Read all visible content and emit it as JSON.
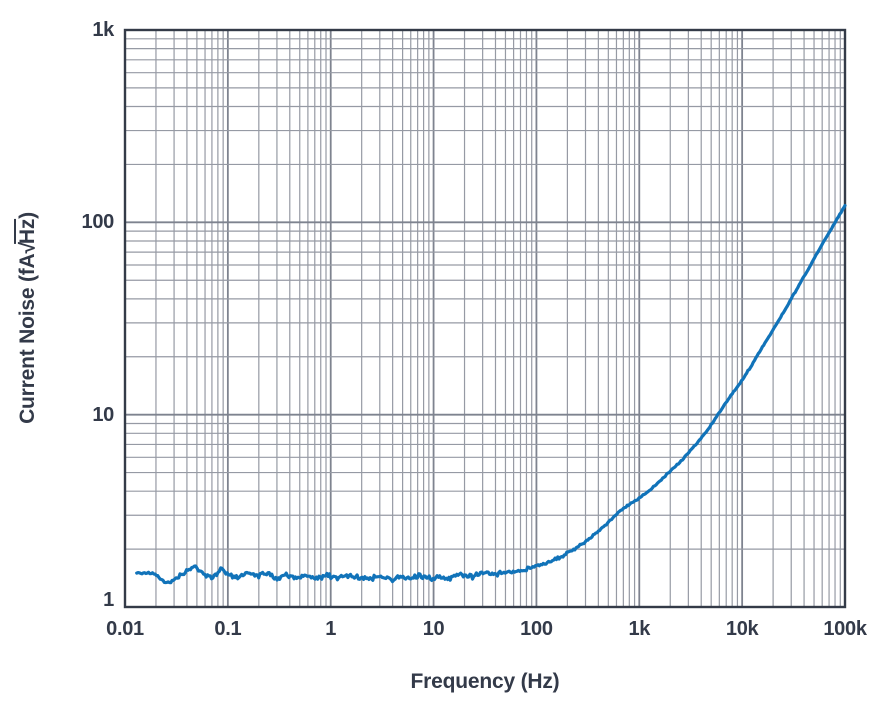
{
  "figure": {
    "background": "#ffffff",
    "text_color": "#333a49",
    "grid_color": "#969aa4",
    "grid_major_color": "#7e838f",
    "frame_color": "#343b48",
    "line_color": "#1173b9"
  },
  "chart_data": {
    "type": "line",
    "xlabel": "Frequency (Hz)",
    "ylabel": "Current Noise (fA√Hz)",
    "ylabel_parts": {
      "pre": "Current Noise (fA",
      "radical": "√",
      "radicand": "Hz",
      "post": ")"
    },
    "x_scale": "log",
    "y_scale": "log",
    "xlim": [
      0.01,
      100000
    ],
    "ylim": [
      1,
      1000
    ],
    "x_ticks": [
      {
        "value": 0.01,
        "label": "0.01"
      },
      {
        "value": 0.1,
        "label": "0.1"
      },
      {
        "value": 1,
        "label": "1"
      },
      {
        "value": 10,
        "label": "10"
      },
      {
        "value": 100,
        "label": "100"
      },
      {
        "value": 1000,
        "label": "1k"
      },
      {
        "value": 10000,
        "label": "10k"
      },
      {
        "value": 100000,
        "label": "100k"
      }
    ],
    "y_ticks": [
      {
        "value": 1,
        "label": "1"
      },
      {
        "value": 10,
        "label": "10"
      },
      {
        "value": 100,
        "label": "100"
      },
      {
        "value": 1000,
        "label": "1k"
      }
    ],
    "grid": "log minor gridlines on, both axes",
    "legend": "none",
    "series": [
      {
        "name": "current-noise",
        "color": "#1173b9",
        "points": [
          [
            0.013,
            1.5
          ],
          [
            0.017,
            1.5
          ],
          [
            0.02,
            1.48
          ],
          [
            0.0245,
            1.33
          ],
          [
            0.03,
            1.38
          ],
          [
            0.04,
            1.55
          ],
          [
            0.048,
            1.63
          ],
          [
            0.058,
            1.48
          ],
          [
            0.07,
            1.42
          ],
          [
            0.088,
            1.58
          ],
          [
            0.1,
            1.48
          ],
          [
            0.12,
            1.42
          ],
          [
            0.15,
            1.52
          ],
          [
            0.19,
            1.45
          ],
          [
            0.24,
            1.5
          ],
          [
            0.3,
            1.42
          ],
          [
            0.38,
            1.48
          ],
          [
            0.48,
            1.41
          ],
          [
            0.6,
            1.47
          ],
          [
            0.75,
            1.4
          ],
          [
            0.95,
            1.46
          ],
          [
            1.2,
            1.41
          ],
          [
            1.5,
            1.47
          ],
          [
            1.9,
            1.42
          ],
          [
            2.4,
            1.4
          ],
          [
            3.0,
            1.45
          ],
          [
            3.8,
            1.38
          ],
          [
            4.8,
            1.43
          ],
          [
            6.0,
            1.4
          ],
          [
            7.5,
            1.45
          ],
          [
            9.5,
            1.39
          ],
          [
            12,
            1.44
          ],
          [
            15,
            1.42
          ],
          [
            19,
            1.47
          ],
          [
            24,
            1.44
          ],
          [
            30,
            1.49
          ],
          [
            38,
            1.47
          ],
          [
            48,
            1.52
          ],
          [
            60,
            1.51
          ],
          [
            75,
            1.56
          ],
          [
            95,
            1.62
          ],
          [
            120,
            1.68
          ],
          [
            150,
            1.76
          ],
          [
            190,
            1.88
          ],
          [
            240,
            2.02
          ],
          [
            300,
            2.18
          ],
          [
            380,
            2.42
          ],
          [
            480,
            2.7
          ],
          [
            600,
            3.05
          ],
          [
            750,
            3.35
          ],
          [
            950,
            3.6
          ],
          [
            1200,
            3.95
          ],
          [
            1500,
            4.4
          ],
          [
            1900,
            4.95
          ],
          [
            2400,
            5.55
          ],
          [
            3000,
            6.3
          ],
          [
            3800,
            7.3
          ],
          [
            4800,
            8.6
          ],
          [
            6000,
            10.3
          ],
          [
            7500,
            12.3
          ],
          [
            9500,
            14.5
          ],
          [
            12000,
            17.6
          ],
          [
            15000,
            21.5
          ],
          [
            19000,
            26.5
          ],
          [
            24000,
            32.5
          ],
          [
            30000,
            40.0
          ],
          [
            38000,
            50.0
          ],
          [
            48000,
            62.0
          ],
          [
            60000,
            77.0
          ],
          [
            75000,
            94.0
          ],
          [
            95000,
            117.0
          ],
          [
            100000,
            122.0
          ]
        ],
        "noise_jitter": {
          "note": "measurement jitter visible on flat portion of trace",
          "amplitude_log10_by_freq": [
            [
              0.013,
              0.004
            ],
            [
              0.03,
              0.01
            ],
            [
              0.3,
              0.016
            ],
            [
              20,
              0.018
            ],
            [
              100,
              0.012
            ],
            [
              400,
              0.005
            ],
            [
              100000,
              0.0035
            ]
          ]
        }
      }
    ]
  }
}
